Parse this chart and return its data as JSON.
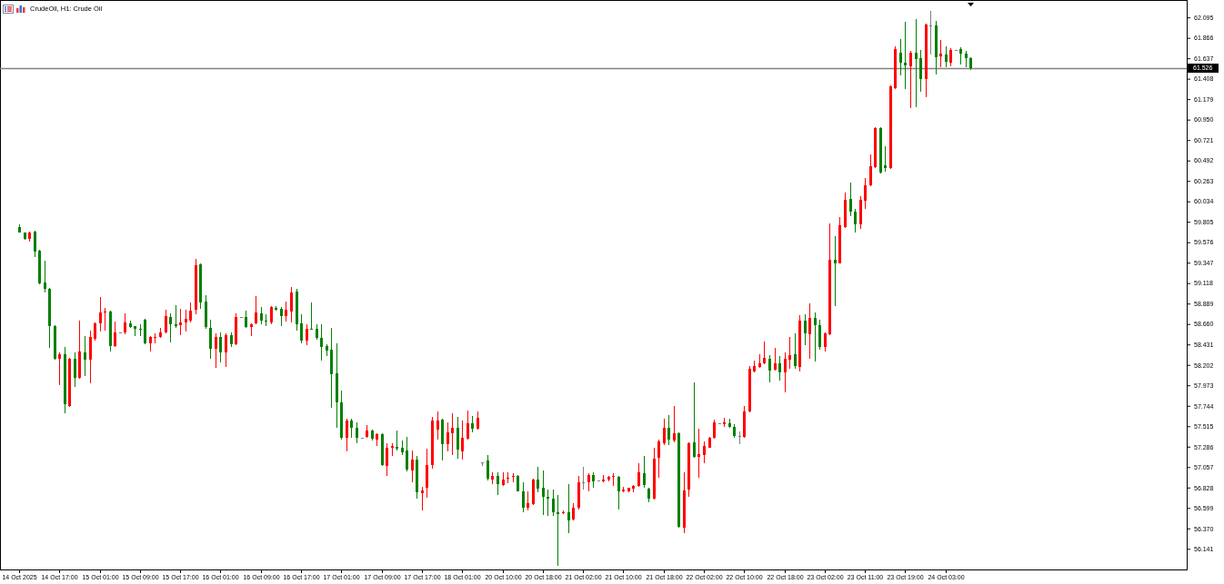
{
  "chart_data": {
    "type": "candlestick",
    "title": "CrudeOil, H1: Crude Oil",
    "categories": [
      "14 Oct 2025",
      null,
      null,
      null,
      null,
      null,
      null,
      null,
      "14 Oct 17:00",
      null,
      null,
      null,
      null,
      null,
      null,
      null,
      "15 Oct 01:00",
      null,
      null,
      null,
      null,
      null,
      null,
      null,
      "15 Oct 09:00",
      null,
      null,
      null,
      null,
      null,
      null,
      null,
      "15 Oct 17:00",
      null,
      null,
      null,
      null,
      null,
      null,
      null,
      "16 Oct 01:00",
      null,
      null,
      null,
      null,
      null,
      null,
      null,
      "16 Oct 09:00",
      null,
      null,
      null,
      null,
      null,
      null,
      null,
      "16 Oct 17:00",
      null,
      null,
      null,
      null,
      null,
      null,
      null,
      "17 Oct 01:00",
      null,
      null,
      null,
      null,
      null,
      null,
      null,
      "17 Oct 09:00",
      null,
      null,
      null,
      null,
      null,
      null,
      null,
      "17 Oct 17:00",
      null,
      null,
      null,
      null,
      null,
      null,
      null,
      "18 Oct 01:00",
      null,
      null,
      null,
      null,
      null,
      null,
      null,
      "20 Oct 10:00",
      null,
      null,
      null,
      null,
      null,
      null,
      null,
      "20 Oct 18:00",
      null,
      null,
      null,
      null,
      null,
      null,
      null,
      "21 Oct 02:00",
      null,
      null,
      null,
      null,
      null,
      null,
      null,
      "21 Oct 10:00",
      null,
      null,
      null,
      null,
      null,
      null,
      null,
      "21 Oct 18:00",
      null,
      null,
      null,
      null,
      null,
      null,
      null,
      "22 Oct 02:00",
      null,
      null,
      null,
      null,
      null,
      null,
      null,
      "22 Oct 10:00",
      null,
      null,
      null,
      null,
      null,
      null,
      null,
      "22 Oct 18:00",
      null,
      null,
      null,
      null,
      null,
      null,
      null,
      "23 Oct 02:00",
      null,
      null,
      null,
      null,
      null,
      null,
      null,
      "23 Oct 11:00",
      null,
      null,
      null,
      null,
      null,
      null,
      null,
      "23 Oct 19:00",
      null,
      null,
      null,
      null,
      null,
      null,
      null,
      "24 Oct 03:00",
      null,
      null,
      null,
      null,
      null,
      null,
      null,
      null,
      null,
      null,
      null,
      null,
      null,
      null,
      null,
      null,
      null,
      null,
      null,
      null,
      null,
      null,
      null,
      null,
      null,
      null,
      null,
      null,
      null,
      null,
      null,
      null,
      null,
      null,
      null,
      null,
      null,
      null,
      null,
      null,
      null,
      null,
      null,
      null,
      null,
      null,
      null
    ],
    "ohlc": [
      [
        59.75,
        59.78,
        59.68,
        59.69
      ],
      [
        59.68,
        59.69,
        59.6,
        59.61
      ],
      [
        59.61,
        59.7,
        59.58,
        59.69
      ],
      [
        59.7,
        59.71,
        59.41,
        59.47
      ],
      [
        59.48,
        59.49,
        59.1,
        59.12
      ],
      [
        59.13,
        59.37,
        59.01,
        59.05
      ],
      [
        59.05,
        59.06,
        58.39,
        58.64
      ],
      [
        58.64,
        58.65,
        58.26,
        58.27
      ],
      [
        58.27,
        58.34,
        57.98,
        58.32
      ],
      [
        58.32,
        58.4,
        57.66,
        57.76
      ],
      [
        57.74,
        58.28,
        57.73,
        58.27
      ],
      [
        58.27,
        58.34,
        57.96,
        58.06
      ],
      [
        58.06,
        58.7,
        58.05,
        58.35
      ],
      [
        58.34,
        58.52,
        58.08,
        58.26
      ],
      [
        58.26,
        58.59,
        58.0,
        58.51
      ],
      [
        58.49,
        58.68,
        58.47,
        58.67
      ],
      [
        58.67,
        58.96,
        58.58,
        58.79
      ],
      [
        58.79,
        58.84,
        58.59,
        58.8
      ],
      [
        58.8,
        58.81,
        58.35,
        58.41
      ],
      [
        58.41,
        58.69,
        58.4,
        58.57
      ],
      [
        58.57,
        58.57,
        58.57,
        58.57
      ],
      [
        58.57,
        58.78,
        58.55,
        58.68
      ],
      [
        58.67,
        58.7,
        58.62,
        58.63
      ],
      [
        58.64,
        58.64,
        58.53,
        58.61
      ],
      [
        58.61,
        58.66,
        58.52,
        58.6
      ],
      [
        58.71,
        58.72,
        58.43,
        58.44
      ],
      [
        58.44,
        58.52,
        58.35,
        58.51
      ],
      [
        58.5,
        58.56,
        58.44,
        58.51
      ],
      [
        58.51,
        58.62,
        58.5,
        58.57
      ],
      [
        58.57,
        58.82,
        58.56,
        58.75
      ],
      [
        58.74,
        58.78,
        58.45,
        58.66
      ],
      [
        58.66,
        58.87,
        58.62,
        58.64
      ],
      [
        58.65,
        58.83,
        58.54,
        58.68
      ],
      [
        58.68,
        58.82,
        58.58,
        58.72
      ],
      [
        58.7,
        58.9,
        58.68,
        58.81
      ],
      [
        58.82,
        59.39,
        58.77,
        59.32
      ],
      [
        59.33,
        59.34,
        58.83,
        58.9
      ],
      [
        58.91,
        58.98,
        58.61,
        58.63
      ],
      [
        58.62,
        58.71,
        58.27,
        58.38
      ],
      [
        58.38,
        58.56,
        58.17,
        58.51
      ],
      [
        58.51,
        58.57,
        58.23,
        58.34
      ],
      [
        58.34,
        58.56,
        58.18,
        58.54
      ],
      [
        58.54,
        58.57,
        58.4,
        58.43
      ],
      [
        58.43,
        58.78,
        58.42,
        58.74
      ],
      [
        58.74,
        58.74,
        58.74,
        58.74
      ],
      [
        58.74,
        58.81,
        58.62,
        58.63
      ],
      [
        58.63,
        58.67,
        58.53,
        58.66
      ],
      [
        58.67,
        58.97,
        58.66,
        58.79
      ],
      [
        58.78,
        58.85,
        58.66,
        58.7
      ],
      [
        58.7,
        58.77,
        58.64,
        58.69
      ],
      [
        58.68,
        58.86,
        58.66,
        58.85
      ],
      [
        58.84,
        58.86,
        58.81,
        58.82
      ],
      [
        58.83,
        58.85,
        58.64,
        58.75
      ],
      [
        58.75,
        58.91,
        58.69,
        58.82
      ],
      [
        58.8,
        59.07,
        58.68,
        59.01
      ],
      [
        59.02,
        59.05,
        58.59,
        58.66
      ],
      [
        58.67,
        58.77,
        58.44,
        58.47
      ],
      [
        58.47,
        58.66,
        58.42,
        58.61
      ],
      [
        58.61,
        58.9,
        58.6,
        58.6
      ],
      [
        58.61,
        58.66,
        58.48,
        58.5
      ],
      [
        58.5,
        58.66,
        58.25,
        58.4
      ],
      [
        58.41,
        58.43,
        58.3,
        58.36
      ],
      [
        58.37,
        58.62,
        57.72,
        58.1
      ],
      [
        58.11,
        58.44,
        57.5,
        57.78
      ],
      [
        57.78,
        57.91,
        57.37,
        57.39
      ],
      [
        57.39,
        57.6,
        57.23,
        57.58
      ],
      [
        57.58,
        57.6,
        57.39,
        57.5
      ],
      [
        57.5,
        57.56,
        57.32,
        57.39
      ],
      [
        57.39,
        57.39,
        57.39,
        57.39
      ],
      [
        57.4,
        57.53,
        57.39,
        57.47
      ],
      [
        57.47,
        57.48,
        57.35,
        57.38
      ],
      [
        57.37,
        57.44,
        57.29,
        57.43
      ],
      [
        57.43,
        57.44,
        57.07,
        57.08
      ],
      [
        57.07,
        57.32,
        56.96,
        57.27
      ],
      [
        57.27,
        57.32,
        57.18,
        57.29
      ],
      [
        57.28,
        57.47,
        57.24,
        57.26
      ],
      [
        57.27,
        57.35,
        57.19,
        57.22
      ],
      [
        57.24,
        57.4,
        57.01,
        57.03
      ],
      [
        57.02,
        57.24,
        56.89,
        57.14
      ],
      [
        57.14,
        57.18,
        56.7,
        56.77
      ],
      [
        56.76,
        56.84,
        56.57,
        56.8
      ],
      [
        56.83,
        57.26,
        56.71,
        57.08
      ],
      [
        57.08,
        57.62,
        57.04,
        57.58
      ],
      [
        57.48,
        57.68,
        57.36,
        57.58
      ],
      [
        57.59,
        57.6,
        57.13,
        57.31
      ],
      [
        57.31,
        57.56,
        57.23,
        57.45
      ],
      [
        57.44,
        57.66,
        57.19,
        57.5
      ],
      [
        57.5,
        57.62,
        57.15,
        57.25
      ],
      [
        57.23,
        57.58,
        57.14,
        57.39
      ],
      [
        57.38,
        57.69,
        57.36,
        57.55
      ],
      [
        57.55,
        57.63,
        57.45,
        57.49
      ],
      [
        57.49,
        57.68,
        57.48,
        57.61
      ],
      [
        57.11,
        57.11,
        57.07,
        57.11
      ],
      [
        57.13,
        57.19,
        56.91,
        56.93
      ],
      [
        56.92,
        57.0,
        56.87,
        56.96
      ],
      [
        56.96,
        57.0,
        56.74,
        56.87
      ],
      [
        56.86,
        57.0,
        56.85,
        56.92
      ],
      [
        56.93,
        57.0,
        56.88,
        56.94
      ],
      [
        56.95,
        56.99,
        56.89,
        56.96
      ],
      [
        56.96,
        56.97,
        56.78,
        56.79
      ],
      [
        56.79,
        56.89,
        56.55,
        56.6
      ],
      [
        56.6,
        56.79,
        56.57,
        56.65
      ],
      [
        56.64,
        56.93,
        56.63,
        56.92
      ],
      [
        56.92,
        57.06,
        56.77,
        56.82
      ],
      [
        56.83,
        57.02,
        56.52,
        56.72
      ],
      [
        56.72,
        56.81,
        56.51,
        56.7
      ],
      [
        56.7,
        56.81,
        56.51,
        56.55
      ],
      [
        56.55,
        56.74,
        55.95,
        56.53
      ],
      [
        56.54,
        56.57,
        56.53,
        56.55
      ],
      [
        56.55,
        56.87,
        56.32,
        56.46
      ],
      [
        56.47,
        56.65,
        56.46,
        56.6
      ],
      [
        56.6,
        56.96,
        56.58,
        56.89
      ],
      [
        56.89,
        57.06,
        56.81,
        56.89
      ],
      [
        56.89,
        56.99,
        56.79,
        56.97
      ],
      [
        56.97,
        57.0,
        56.83,
        56.9
      ],
      [
        56.91,
        56.91,
        56.91,
        56.91
      ],
      [
        56.9,
        56.97,
        56.89,
        56.92
      ],
      [
        56.92,
        56.96,
        56.9,
        56.95
      ],
      [
        56.95,
        56.99,
        56.85,
        56.96
      ],
      [
        56.95,
        56.96,
        56.58,
        56.78
      ],
      [
        56.78,
        56.84,
        56.77,
        56.81
      ],
      [
        56.79,
        56.83,
        56.77,
        56.83
      ],
      [
        56.82,
        56.86,
        56.77,
        56.85
      ],
      [
        56.85,
        57.1,
        56.84,
        57.0
      ],
      [
        56.99,
        57.18,
        56.83,
        56.86
      ],
      [
        56.82,
        56.83,
        56.66,
        56.7
      ],
      [
        56.7,
        57.27,
        56.69,
        57.15
      ],
      [
        57.16,
        57.36,
        56.94,
        57.34
      ],
      [
        57.32,
        57.6,
        57.3,
        57.5
      ],
      [
        57.5,
        57.64,
        57.3,
        57.37
      ],
      [
        57.35,
        57.74,
        57.33,
        57.44
      ],
      [
        57.44,
        57.45,
        56.38,
        56.39
      ],
      [
        56.38,
        57.0,
        56.32,
        56.8
      ],
      [
        56.81,
        57.33,
        56.72,
        57.32
      ],
      [
        57.33,
        58.01,
        57.16,
        57.17
      ],
      [
        57.17,
        57.49,
        56.94,
        57.2
      ],
      [
        57.19,
        57.34,
        57.1,
        57.29
      ],
      [
        57.27,
        57.4,
        57.27,
        57.39
      ],
      [
        57.39,
        57.59,
        57.38,
        57.56
      ],
      [
        57.55,
        57.55,
        57.55,
        57.55
      ],
      [
        57.54,
        57.61,
        57.51,
        57.56
      ],
      [
        57.55,
        57.6,
        57.5,
        57.51
      ],
      [
        57.51,
        57.54,
        57.39,
        57.41
      ],
      [
        57.41,
        57.46,
        57.31,
        57.41
      ],
      [
        57.4,
        57.74,
        57.39,
        57.68
      ],
      [
        57.68,
        58.19,
        57.67,
        58.16
      ],
      [
        58.13,
        58.25,
        58.12,
        58.19
      ],
      [
        58.18,
        58.32,
        58.17,
        58.22
      ],
      [
        58.22,
        58.46,
        58.21,
        58.28
      ],
      [
        58.27,
        58.31,
        58.01,
        58.14
      ],
      [
        58.15,
        58.39,
        58.14,
        58.22
      ],
      [
        58.22,
        58.3,
        58.03,
        58.12
      ],
      [
        58.12,
        58.34,
        57.89,
        58.27
      ],
      [
        58.26,
        58.51,
        58.16,
        58.31
      ],
      [
        58.32,
        58.56,
        58.16,
        58.19
      ],
      [
        58.18,
        58.76,
        58.13,
        58.7
      ],
      [
        58.7,
        58.77,
        58.42,
        58.56
      ],
      [
        58.55,
        58.89,
        58.27,
        58.73
      ],
      [
        58.73,
        58.79,
        58.24,
        58.65
      ],
      [
        58.65,
        58.71,
        58.37,
        58.4
      ],
      [
        58.4,
        58.57,
        58.35,
        58.56
      ],
      [
        58.55,
        59.79,
        58.54,
        59.38
      ],
      [
        59.38,
        59.64,
        58.86,
        59.34
      ],
      [
        59.34,
        59.86,
        59.34,
        59.77
      ],
      [
        59.75,
        60.13,
        59.74,
        60.05
      ],
      [
        60.06,
        60.24,
        59.87,
        59.92
      ],
      [
        59.92,
        59.95,
        59.69,
        59.78
      ],
      [
        59.78,
        60.09,
        59.73,
        60.05
      ],
      [
        60.04,
        60.3,
        59.95,
        60.21
      ],
      [
        60.21,
        60.56,
        60.2,
        60.43
      ],
      [
        60.42,
        60.87,
        60.41,
        60.86
      ],
      [
        60.86,
        60.87,
        60.35,
        60.36
      ],
      [
        60.44,
        60.65,
        60.37,
        60.41
      ],
      [
        60.41,
        61.33,
        60.4,
        61.32
      ],
      [
        61.3,
        61.77,
        61.29,
        61.74
      ],
      [
        61.7,
        61.85,
        61.45,
        61.59
      ],
      [
        61.59,
        62.05,
        61.29,
        61.56
      ],
      [
        61.55,
        61.72,
        61.08,
        61.7
      ],
      [
        61.7,
        62.08,
        61.09,
        61.63
      ],
      [
        61.64,
        61.73,
        61.26,
        61.4
      ],
      [
        61.4,
        62.03,
        61.2,
        62.02
      ],
      [
        62.0,
        62.17,
        61.68,
        62.0
      ],
      [
        62.0,
        62.06,
        61.46,
        61.65
      ],
      [
        61.66,
        61.84,
        61.54,
        61.69
      ],
      [
        61.68,
        61.77,
        61.54,
        61.6
      ],
      [
        61.59,
        61.75,
        61.55,
        61.73
      ],
      [
        61.73,
        61.73,
        61.73,
        61.73
      ],
      [
        61.74,
        61.76,
        61.57,
        61.69
      ],
      [
        61.69,
        61.72,
        61.54,
        61.64
      ],
      [
        61.64,
        61.65,
        61.51,
        61.526
      ],
      null,
      null,
      null,
      null,
      null,
      null,
      null,
      null,
      null,
      null,
      null,
      null,
      null,
      null,
      null,
      null,
      null,
      null,
      null,
      null,
      null,
      null,
      null,
      null,
      null,
      null,
      null,
      null,
      null,
      null,
      null,
      null,
      null,
      null,
      null,
      null,
      null,
      null,
      null,
      null,
      null,
      null
    ],
    "colors": [
      "#008000",
      "#008000",
      "#ff0000",
      "#008000",
      "#008000",
      "#008000",
      "#008000",
      "#008000",
      "#ff0000",
      "#008000",
      "#ff0000",
      "#008000",
      "#ff0000",
      "#008000",
      "#ff0000",
      "#ff0000",
      "#ff0000",
      "#ff0000",
      "#008000",
      "#ff0000",
      "#808080",
      "#ff0000",
      "#008000",
      "#008000",
      "#008000",
      "#008000",
      "#ff0000",
      "#ff0000",
      "#ff0000",
      "#ff0000",
      "#008000",
      "#008000",
      "#ff0000",
      "#ff0000",
      "#ff0000",
      "#ff0000",
      "#008000",
      "#008000",
      "#008000",
      "#ff0000",
      "#008000",
      "#ff0000",
      "#008000",
      "#ff0000",
      "#808080",
      "#008000",
      "#ff0000",
      "#ff0000",
      "#008000",
      "#008000",
      "#ff0000",
      "#008000",
      "#008000",
      "#ff0000",
      "#ff0000",
      "#008000",
      "#008000",
      "#ff0000",
      "#008000",
      "#008000",
      "#008000",
      "#008000",
      "#008000",
      "#008000",
      "#008000",
      "#ff0000",
      "#008000",
      "#008000",
      "#808080",
      "#ff0000",
      "#008000",
      "#ff0000",
      "#008000",
      "#ff0000",
      "#ff0000",
      "#008000",
      "#008000",
      "#008000",
      "#ff0000",
      "#008000",
      "#ff0000",
      "#ff0000",
      "#ff0000",
      "#ff0000",
      "#008000",
      "#ff0000",
      "#ff0000",
      "#008000",
      "#ff0000",
      "#ff0000",
      "#008000",
      "#ff0000",
      "#808080",
      "#008000",
      "#ff0000",
      "#008000",
      "#ff0000",
      "#ff0000",
      "#ff0000",
      "#008000",
      "#008000",
      "#ff0000",
      "#ff0000",
      "#008000",
      "#008000",
      "#008000",
      "#008000",
      "#008000",
      "#ff0000",
      "#008000",
      "#ff0000",
      "#ff0000",
      "#808080",
      "#ff0000",
      "#008000",
      "#808080",
      "#ff0000",
      "#ff0000",
      "#ff0000",
      "#008000",
      "#ff0000",
      "#ff0000",
      "#ff0000",
      "#ff0000",
      "#008000",
      "#008000",
      "#ff0000",
      "#ff0000",
      "#ff0000",
      "#008000",
      "#ff0000",
      "#008000",
      "#ff0000",
      "#ff0000",
      "#008000",
      "#ff0000",
      "#ff0000",
      "#ff0000",
      "#ff0000",
      "#808080",
      "#ff0000",
      "#008000",
      "#008000",
      "#808080",
      "#ff0000",
      "#ff0000",
      "#ff0000",
      "#ff0000",
      "#ff0000",
      "#008000",
      "#ff0000",
      "#008000",
      "#ff0000",
      "#ff0000",
      "#008000",
      "#ff0000",
      "#008000",
      "#ff0000",
      "#008000",
      "#008000",
      "#ff0000",
      "#ff0000",
      "#008000",
      "#ff0000",
      "#ff0000",
      "#008000",
      "#008000",
      "#ff0000",
      "#ff0000",
      "#ff0000",
      "#ff0000",
      "#008000",
      "#008000",
      "#ff0000",
      "#ff0000",
      "#008000",
      "#008000",
      "#ff0000",
      "#008000",
      "#008000",
      "#ff0000",
      "#808080",
      "#008000",
      "#ff0000",
      "#008000",
      "#ff0000",
      "#808080",
      "#008000",
      "#008000",
      "#008000",
      null,
      null,
      null,
      null,
      null,
      null,
      null,
      null,
      null,
      null,
      null,
      null,
      null,
      null,
      null,
      null,
      null,
      null,
      null,
      null,
      null,
      null,
      null,
      null,
      null,
      null,
      null,
      null,
      null,
      null,
      null,
      null,
      null,
      null,
      null,
      null,
      null,
      null,
      null,
      null,
      null,
      null
    ],
    "ylim": [
      55.91,
      62.29
    ],
    "yticks": [
      56.141,
      {
        "value": 56.37,
        "label": "56.370"
      },
      56.599,
      56.828,
      57.057,
      57.286,
      57.515,
      57.744,
      57.973,
      58.202,
      58.431,
      {
        "value": 58.66,
        "label": "58.660"
      },
      58.889,
      59.118,
      59.347,
      59.576,
      59.805,
      60.034,
      60.263,
      60.492,
      60.721,
      {
        "value": 60.95,
        "label": "60.950"
      },
      61.179,
      61.408,
      61.637,
      61.866,
      62.095
    ],
    "ref_lines": [
      {
        "axis": "y",
        "value": 61.526,
        "label": "61.526",
        "color": "#808080"
      }
    ]
  }
}
